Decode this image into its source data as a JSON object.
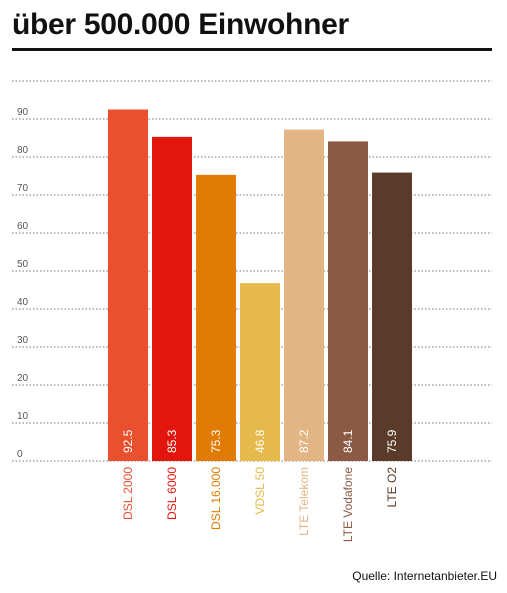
{
  "title": "über 500.000 Einwohner",
  "source": "Quelle: Internetanbieter.EU",
  "chart_data": {
    "type": "bar",
    "title": "über 500.000 Einwohner",
    "categories": [
      "DSL 2000",
      "DSL 6000",
      "DSL 16.000",
      "VDSL 50",
      "LTE Telekom",
      "LTE Vodafone",
      "LTE O2"
    ],
    "values": [
      92.5,
      85.3,
      75.3,
      46.8,
      87.2,
      84.1,
      75.9
    ],
    "value_labels": [
      "92.5",
      "85.3",
      "75.3",
      "46.8",
      "87.2",
      "84.1",
      "75.9"
    ],
    "colors": [
      "#e8502e",
      "#e3160d",
      "#e07b05",
      "#e5b94c",
      "#e3b585",
      "#8c5a44",
      "#5a3a29"
    ],
    "yticks": [
      "0",
      "10",
      "20",
      "30",
      "40",
      "50",
      "60",
      "70",
      "80",
      "90"
    ],
    "ylim": [
      0,
      100
    ],
    "grid": true,
    "legend": "none"
  }
}
